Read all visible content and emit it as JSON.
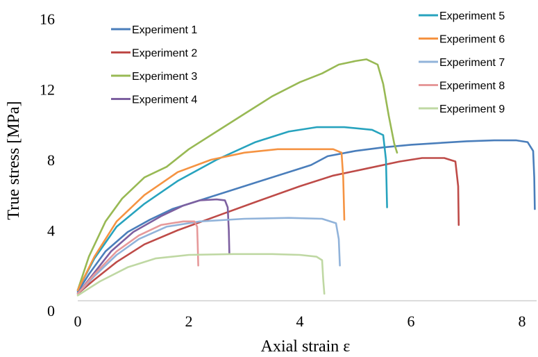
{
  "chart_data": {
    "type": "line",
    "title": "",
    "xlabel": "Axial strain ε",
    "ylabel": "True stress [MPa]",
    "xlim": [
      0,
      8.6
    ],
    "ylim": [
      0,
      16
    ],
    "xticks": [
      "0",
      "2",
      "4",
      "6",
      "8"
    ],
    "yticks": [
      "0",
      "4",
      "8",
      "12",
      "16"
    ],
    "grid": false,
    "legend": "two columns inside plot area, top",
    "series": [
      {
        "name": "Experiment 1",
        "color": "#4a7ebb",
        "points": [
          [
            0,
            0.5
          ],
          [
            0.2,
            1.5
          ],
          [
            0.5,
            2.8
          ],
          [
            0.9,
            3.9
          ],
          [
            1.3,
            4.6
          ],
          [
            1.7,
            5.2
          ],
          [
            2.2,
            5.7
          ],
          [
            2.8,
            6.3
          ],
          [
            3.4,
            6.9
          ],
          [
            3.9,
            7.4
          ],
          [
            4.2,
            7.7
          ],
          [
            4.5,
            8.2
          ],
          [
            5.0,
            8.5
          ],
          [
            5.5,
            8.7
          ],
          [
            6.0,
            8.85
          ],
          [
            6.5,
            8.95
          ],
          [
            7.0,
            9.05
          ],
          [
            7.5,
            9.1
          ],
          [
            7.9,
            9.1
          ],
          [
            8.1,
            9.0
          ],
          [
            8.2,
            8.5
          ],
          [
            8.22,
            7.0
          ],
          [
            8.23,
            5.2
          ]
        ]
      },
      {
        "name": "Experiment 2",
        "color": "#be4b48",
        "points": [
          [
            0,
            0.4
          ],
          [
            0.3,
            1.2
          ],
          [
            0.7,
            2.2
          ],
          [
            1.2,
            3.2
          ],
          [
            1.8,
            4.0
          ],
          [
            2.5,
            4.8
          ],
          [
            3.2,
            5.6
          ],
          [
            4.0,
            6.5
          ],
          [
            4.6,
            7.1
          ],
          [
            5.2,
            7.5
          ],
          [
            5.8,
            7.9
          ],
          [
            6.2,
            8.1
          ],
          [
            6.6,
            8.1
          ],
          [
            6.8,
            7.9
          ],
          [
            6.85,
            6.5
          ],
          [
            6.86,
            4.3
          ]
        ]
      },
      {
        "name": "Experiment 3",
        "color": "#98b954",
        "points": [
          [
            0,
            0.6
          ],
          [
            0.2,
            2.5
          ],
          [
            0.5,
            4.5
          ],
          [
            0.8,
            5.8
          ],
          [
            1.2,
            7.0
          ],
          [
            1.6,
            7.6
          ],
          [
            2.0,
            8.6
          ],
          [
            2.5,
            9.6
          ],
          [
            3.0,
            10.6
          ],
          [
            3.5,
            11.6
          ],
          [
            4.0,
            12.4
          ],
          [
            4.4,
            12.9
          ],
          [
            4.7,
            13.4
          ],
          [
            5.0,
            13.6
          ],
          [
            5.2,
            13.7
          ],
          [
            5.4,
            13.4
          ],
          [
            5.5,
            12.3
          ],
          [
            5.6,
            10.5
          ],
          [
            5.7,
            8.9
          ],
          [
            5.75,
            8.4
          ]
        ]
      },
      {
        "name": "Experiment 4",
        "color": "#7d60a0",
        "points": [
          [
            0,
            0.4
          ],
          [
            0.3,
            1.6
          ],
          [
            0.6,
            2.8
          ],
          [
            1.0,
            3.9
          ],
          [
            1.5,
            4.8
          ],
          [
            1.9,
            5.4
          ],
          [
            2.2,
            5.7
          ],
          [
            2.5,
            5.75
          ],
          [
            2.65,
            5.7
          ],
          [
            2.7,
            5.3
          ],
          [
            2.72,
            4.0
          ],
          [
            2.73,
            2.7
          ]
        ]
      },
      {
        "name": "Experiment 5",
        "color": "#27a3be",
        "points": [
          [
            0,
            0.6
          ],
          [
            0.3,
            2.4
          ],
          [
            0.7,
            4.2
          ],
          [
            1.2,
            5.5
          ],
          [
            1.8,
            6.8
          ],
          [
            2.5,
            8.0
          ],
          [
            3.2,
            9.0
          ],
          [
            3.8,
            9.6
          ],
          [
            4.3,
            9.85
          ],
          [
            4.8,
            9.85
          ],
          [
            5.3,
            9.7
          ],
          [
            5.5,
            9.4
          ],
          [
            5.55,
            8.0
          ],
          [
            5.57,
            5.3
          ]
        ]
      },
      {
        "name": "Experiment 6",
        "color": "#f59342",
        "points": [
          [
            0,
            0.6
          ],
          [
            0.3,
            2.5
          ],
          [
            0.7,
            4.5
          ],
          [
            1.2,
            6.0
          ],
          [
            1.8,
            7.3
          ],
          [
            2.4,
            8.0
          ],
          [
            3.0,
            8.4
          ],
          [
            3.6,
            8.6
          ],
          [
            4.2,
            8.6
          ],
          [
            4.6,
            8.6
          ],
          [
            4.75,
            8.4
          ],
          [
            4.78,
            7.0
          ],
          [
            4.8,
            4.6
          ]
        ]
      },
      {
        "name": "Experiment 7",
        "color": "#91b3da",
        "points": [
          [
            0,
            0.4
          ],
          [
            0.3,
            1.4
          ],
          [
            0.7,
            2.6
          ],
          [
            1.1,
            3.5
          ],
          [
            1.6,
            4.2
          ],
          [
            2.2,
            4.5
          ],
          [
            3.0,
            4.65
          ],
          [
            3.8,
            4.7
          ],
          [
            4.4,
            4.65
          ],
          [
            4.65,
            4.4
          ],
          [
            4.7,
            3.5
          ],
          [
            4.72,
            2.0
          ]
        ]
      },
      {
        "name": "Experiment 8",
        "color": "#e6999a",
        "points": [
          [
            0,
            0.4
          ],
          [
            0.3,
            1.5
          ],
          [
            0.7,
            2.8
          ],
          [
            1.1,
            3.7
          ],
          [
            1.5,
            4.3
          ],
          [
            1.9,
            4.5
          ],
          [
            2.1,
            4.5
          ],
          [
            2.15,
            4.2
          ],
          [
            2.16,
            3.2
          ],
          [
            2.17,
            2.0
          ]
        ]
      },
      {
        "name": "Experiment 9",
        "color": "#bfd8a3",
        "points": [
          [
            0,
            0.3
          ],
          [
            0.4,
            1.1
          ],
          [
            0.9,
            1.9
          ],
          [
            1.4,
            2.4
          ],
          [
            2.0,
            2.6
          ],
          [
            2.8,
            2.65
          ],
          [
            3.5,
            2.65
          ],
          [
            4.0,
            2.6
          ],
          [
            4.3,
            2.5
          ],
          [
            4.4,
            2.3
          ],
          [
            4.42,
            1.2
          ],
          [
            4.44,
            0.4
          ]
        ]
      }
    ]
  }
}
